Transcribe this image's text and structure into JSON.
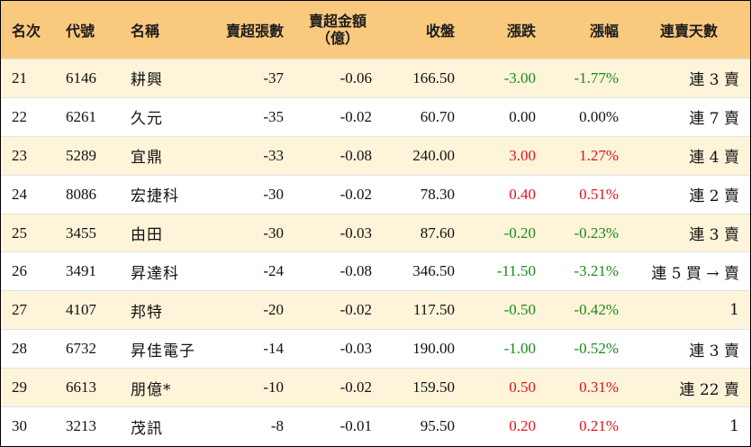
{
  "header": {
    "rank": "名次",
    "code": "代號",
    "name": "名稱",
    "net_sell_lots": "賣超張數",
    "net_sell_amount_line1": "賣超金額",
    "net_sell_amount_line2": "（億）",
    "close": "收盤",
    "change": "漲跌",
    "pct_change": "漲幅",
    "streak": "連賣天數"
  },
  "colors": {
    "header_bg": "#f9c97e",
    "band_bg": "#fef4d9",
    "up": "#e3101f",
    "down": "#1b8a1b"
  },
  "rows": [
    {
      "rank": "21",
      "code": "6146",
      "name": "耕興",
      "lots": "-37",
      "amount": "-0.06",
      "close": "166.50",
      "change": "-3.00",
      "pct": "-1.77%",
      "streak": "連 3 賣",
      "dir": "neg"
    },
    {
      "rank": "22",
      "code": "6261",
      "name": "久元",
      "lots": "-35",
      "amount": "-0.02",
      "close": "60.70",
      "change": "0.00",
      "pct": "0.00%",
      "streak": "連 7 賣",
      "dir": "flat"
    },
    {
      "rank": "23",
      "code": "5289",
      "name": "宜鼎",
      "lots": "-33",
      "amount": "-0.08",
      "close": "240.00",
      "change": "3.00",
      "pct": "1.27%",
      "streak": "連 4 賣",
      "dir": "pos"
    },
    {
      "rank": "24",
      "code": "8086",
      "name": "宏捷科",
      "lots": "-30",
      "amount": "-0.02",
      "close": "78.30",
      "change": "0.40",
      "pct": "0.51%",
      "streak": "連 2 賣",
      "dir": "pos"
    },
    {
      "rank": "25",
      "code": "3455",
      "name": "由田",
      "lots": "-30",
      "amount": "-0.03",
      "close": "87.60",
      "change": "-0.20",
      "pct": "-0.23%",
      "streak": "連 3 賣",
      "dir": "neg"
    },
    {
      "rank": "26",
      "code": "3491",
      "name": "昇達科",
      "lots": "-24",
      "amount": "-0.08",
      "close": "346.50",
      "change": "-11.50",
      "pct": "-3.21%",
      "streak": "連 5 買 → 賣",
      "dir": "neg"
    },
    {
      "rank": "27",
      "code": "4107",
      "name": "邦特",
      "lots": "-20",
      "amount": "-0.02",
      "close": "117.50",
      "change": "-0.50",
      "pct": "-0.42%",
      "streak": "1",
      "dir": "neg"
    },
    {
      "rank": "28",
      "code": "6732",
      "name": "昇佳電子",
      "lots": "-14",
      "amount": "-0.03",
      "close": "190.00",
      "change": "-1.00",
      "pct": "-0.52%",
      "streak": "連 3 賣",
      "dir": "neg"
    },
    {
      "rank": "29",
      "code": "6613",
      "name": "朋億*",
      "lots": "-10",
      "amount": "-0.02",
      "close": "159.50",
      "change": "0.50",
      "pct": "0.31%",
      "streak": "連 22 賣",
      "dir": "pos"
    },
    {
      "rank": "30",
      "code": "3213",
      "name": "茂訊",
      "lots": "-8",
      "amount": "-0.01",
      "close": "95.50",
      "change": "0.20",
      "pct": "0.21%",
      "streak": "1",
      "dir": "pos"
    }
  ]
}
